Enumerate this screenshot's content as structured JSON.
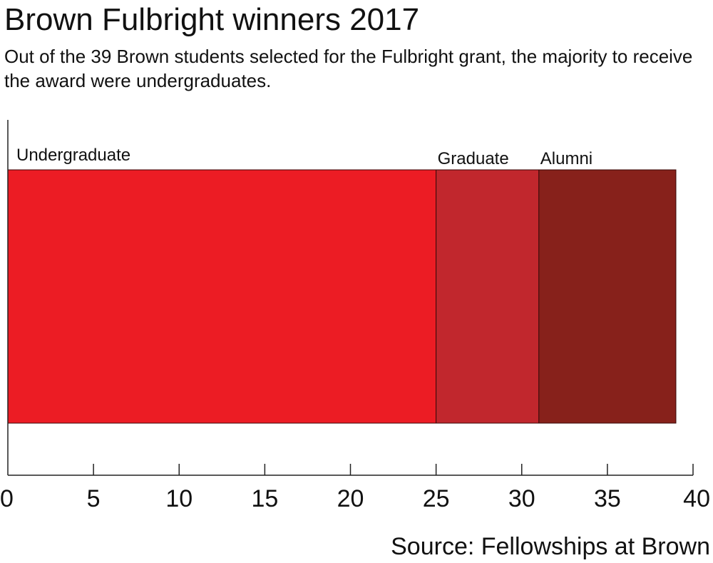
{
  "chart_data": {
    "type": "bar",
    "orientation": "horizontal-stacked",
    "title": "Brown Fulbright winners 2017",
    "subtitle": "Out of the 39 Brown students selected for the Fulbright grant, the majority to receive the award were undergraduates.",
    "source": "Source: Fellowships at Brown",
    "series": [
      {
        "name": "Undergraduate",
        "value": 25,
        "color": "#ec1c24"
      },
      {
        "name": "Graduate",
        "value": 6,
        "color": "#c1272d"
      },
      {
        "name": "Alumni",
        "value": 8,
        "color": "#87211b"
      }
    ],
    "xlim": [
      0,
      40
    ],
    "xticks": [
      0,
      5,
      10,
      15,
      20,
      25,
      30,
      35,
      40
    ],
    "xtick_labels": [
      "0",
      "5",
      "10",
      "15",
      "20",
      "25",
      "30",
      "35",
      "40"
    ],
    "grid": false,
    "legend": "none"
  }
}
